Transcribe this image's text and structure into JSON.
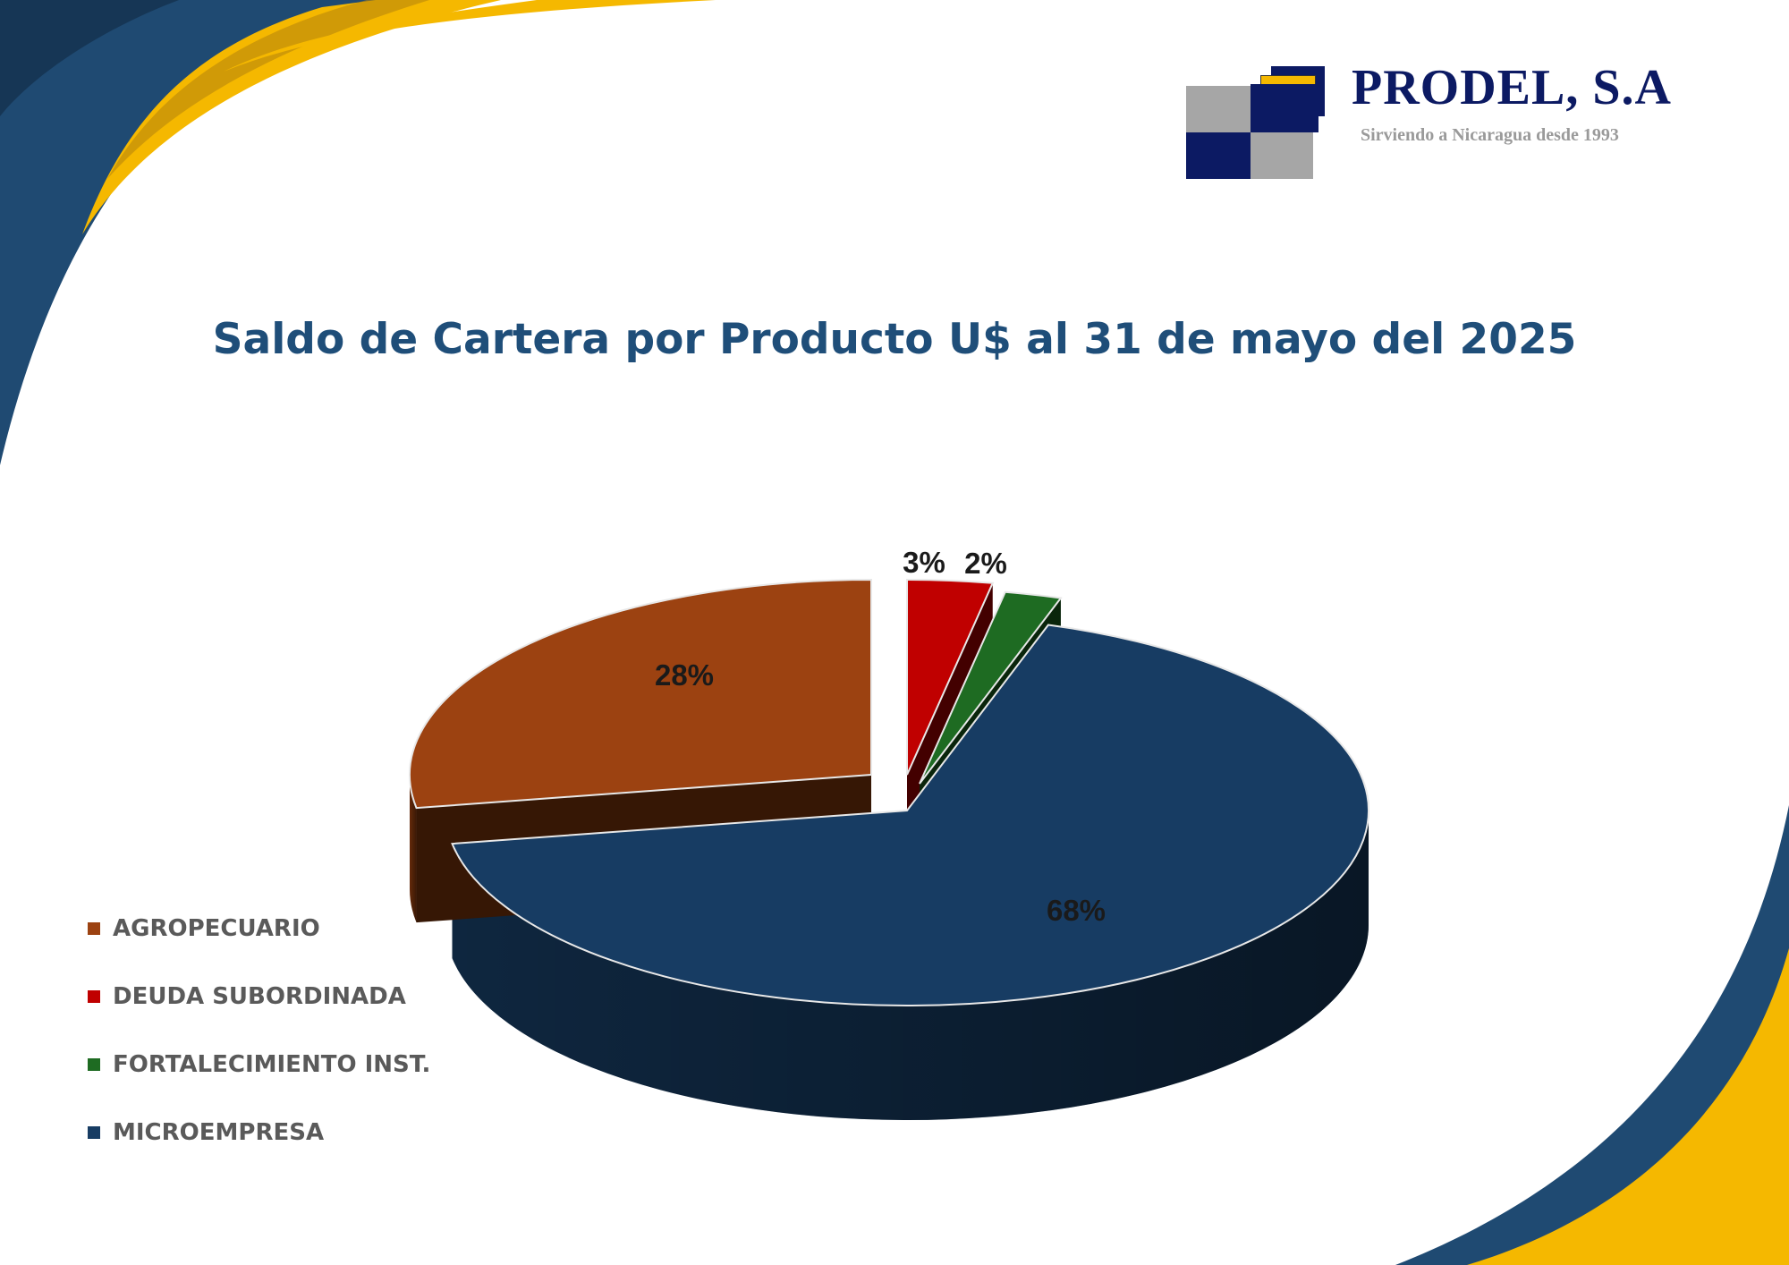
{
  "logo": {
    "name": "PRODEL, S.A",
    "tagline": "Sirviendo a Nicaragua desde 1993"
  },
  "colors": {
    "navy": "#1f4e79",
    "gold": "#f5b800",
    "logo_navy": "#0c1a63",
    "logo_gray": "#a6a6a6"
  },
  "chart_data": {
    "type": "pie",
    "title": "Saldo de Cartera por Producto U$ al 31 de mayo del 2025",
    "legend_position": "left",
    "slices": [
      {
        "name": "DEUDA SUBORDINADA",
        "value": 3,
        "label": "3%",
        "color": "#c00000"
      },
      {
        "name": "FORTALECIMIENTO INST.",
        "value": 2,
        "label": "2%",
        "color": "#1e6b22"
      },
      {
        "name": "MICROEMPRESA",
        "value": 68,
        "label": "68%",
        "color": "#173c63"
      },
      {
        "name": "AGROPECUARIO",
        "value": 28,
        "label": "28%",
        "color": "#9c4211"
      }
    ],
    "legend": [
      "AGROPECUARIO",
      "DEUDA SUBORDINADA",
      "FORTALECIMIENTO INST.",
      "MICROEMPRESA"
    ]
  }
}
